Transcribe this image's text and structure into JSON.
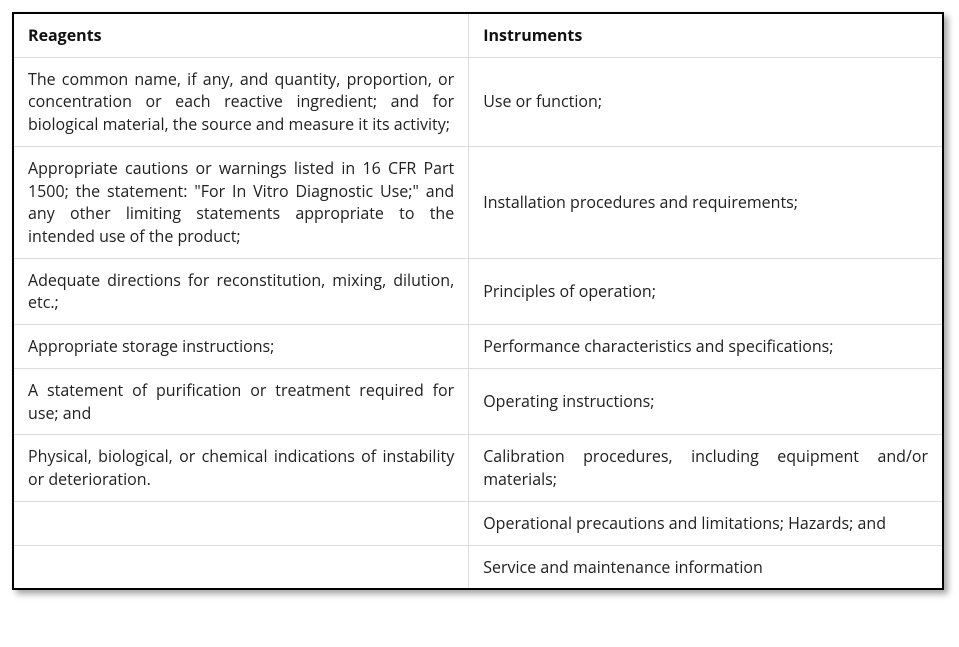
{
  "table": {
    "columns": [
      "Reagents",
      "Instruments"
    ],
    "rows": [
      {
        "reagents": "The common name, if any, and quantity, proportion, or concentration or each reactive ingredient; and for biological material, the source and measure it its activity;",
        "instruments": "Use or function;"
      },
      {
        "reagents": "Appropriate cautions or warnings listed in 16 CFR Part 1500; the statement: \"For In Vitro Diagnostic Use;\" and any other limiting statements appropriate to the intended use of the product;",
        "instruments": "Installation procedures and requirements;"
      },
      {
        "reagents": "Adequate directions for reconstitution, mixing, dilution, etc.;",
        "instruments": "Principles of operation;"
      },
      {
        "reagents": "Appropriate storage instructions;",
        "instruments": "Performance characteristics and specifications;"
      },
      {
        "reagents": "A statement of purification or treatment required for use; and",
        "instruments": "Operating instructions;"
      },
      {
        "reagents": "Physical, biological, or chemical indications of instability or deterioration.",
        "instruments": "Calibration procedures, including equipment and/or materials;"
      },
      {
        "reagents": "",
        "instruments": "Operational precautions and limitations; Hazards; and"
      },
      {
        "reagents": "",
        "instruments": "Service and maintenance information"
      }
    ],
    "style": {
      "border_color": "#dddddd",
      "outer_border_color": "#000000",
      "font_size_pt": 12,
      "header_font_weight": 700,
      "text_color": "#212121",
      "background_color": "#ffffff",
      "col_widths_percent": [
        49,
        51
      ],
      "reagents_align": "justify",
      "instruments_align": "left"
    }
  }
}
